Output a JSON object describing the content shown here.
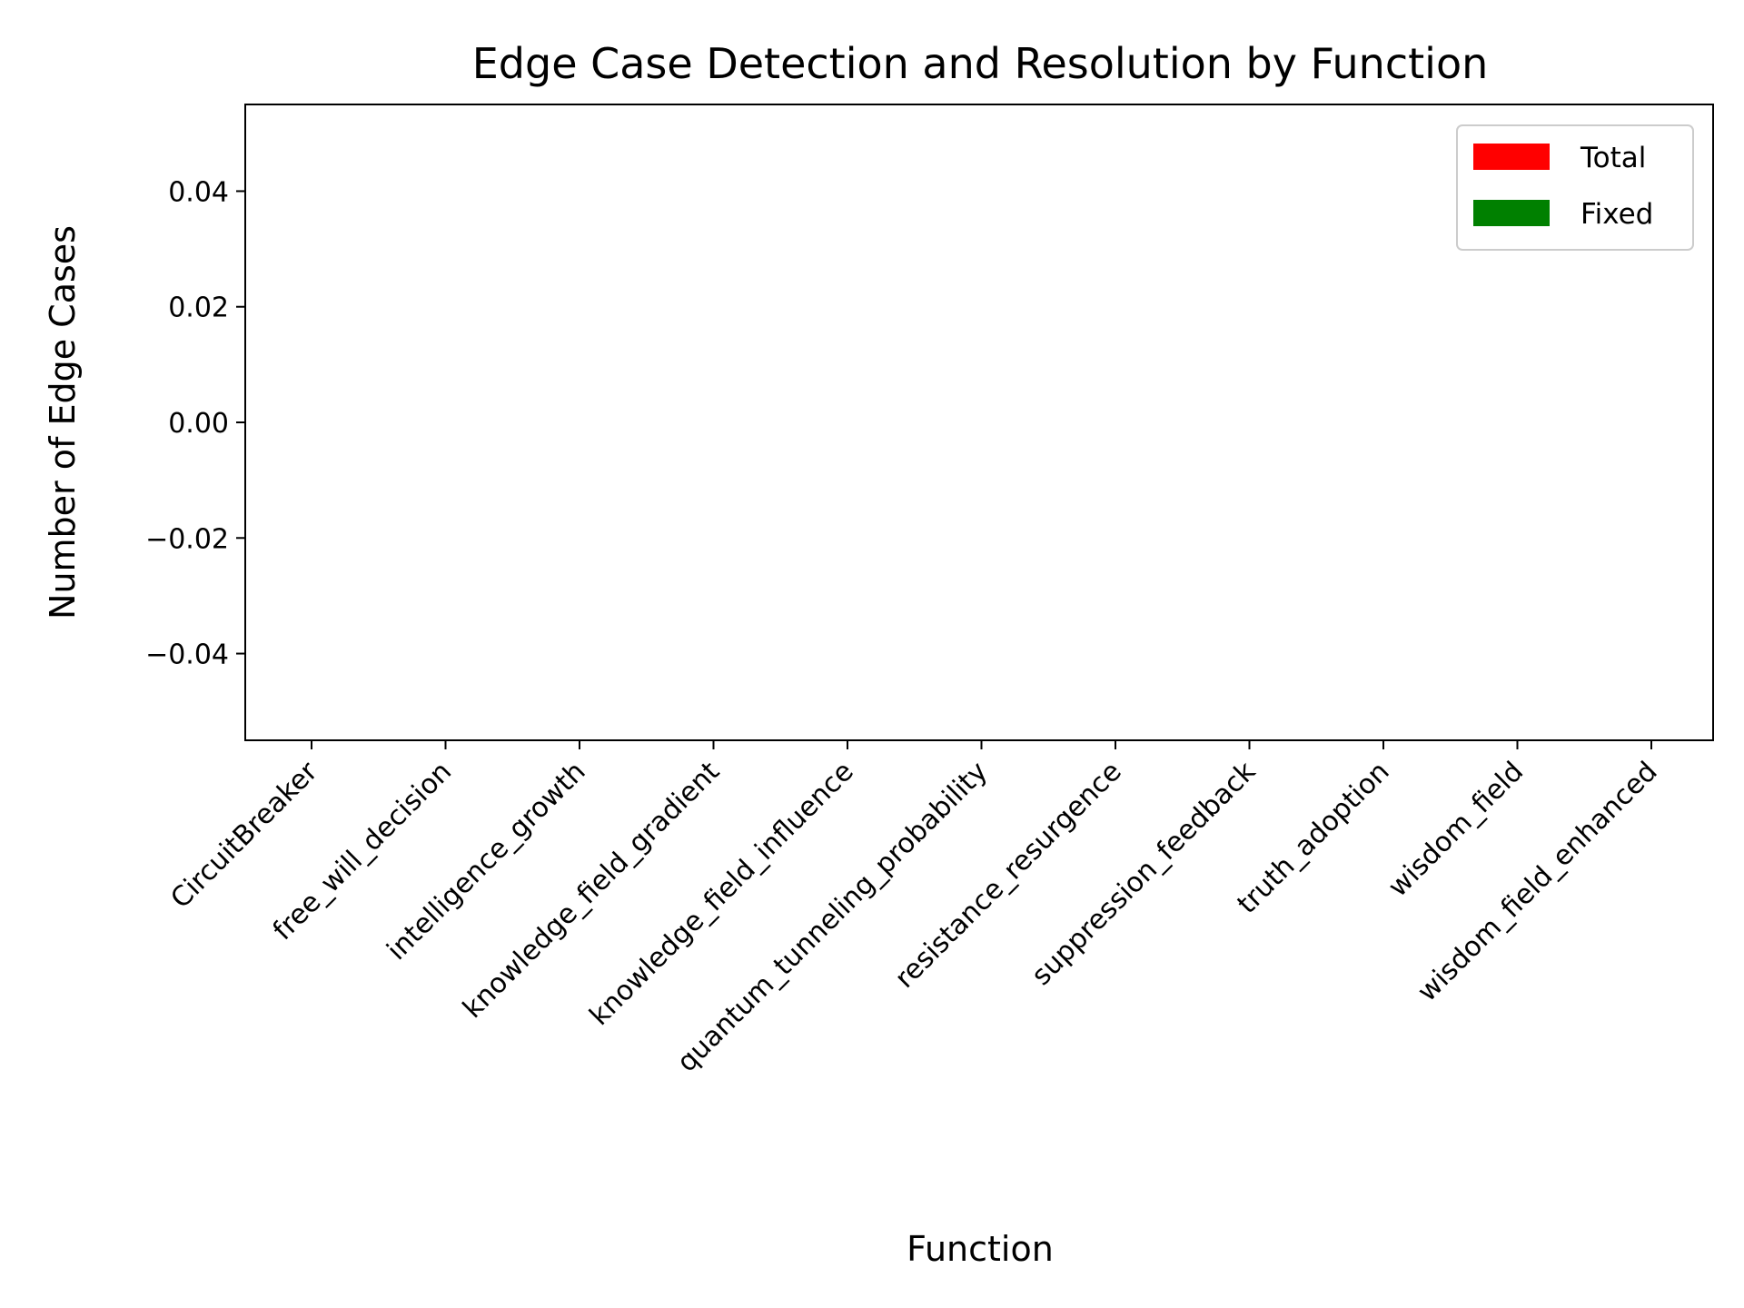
{
  "chart_data": {
    "type": "bar",
    "title": "Edge Case Detection and Resolution by Function",
    "xlabel": "Function",
    "ylabel": "Number of Edge Cases",
    "categories": [
      "CircuitBreaker",
      "free_will_decision",
      "intelligence_growth",
      "knowledge_field_gradient",
      "knowledge_field_influence",
      "quantum_tunneling_probability",
      "resistance_resurgence",
      "suppression_feedback",
      "truth_adoption",
      "wisdom_field",
      "wisdom_field_enhanced"
    ],
    "series": [
      {
        "name": "Total",
        "color": "#ff0000",
        "values": [
          null,
          null,
          null,
          null,
          null,
          null,
          null,
          null,
          null,
          null,
          null
        ]
      },
      {
        "name": "Fixed",
        "color": "#008000",
        "values": [
          null,
          null,
          null,
          null,
          null,
          null,
          null,
          null,
          null,
          null,
          null
        ]
      }
    ],
    "ylim": [
      -0.055,
      0.055
    ],
    "yticks": [
      0.04,
      0.02,
      0.0,
      -0.02,
      -0.04
    ],
    "ytick_labels": [
      "0.04",
      "0.02",
      "0.00",
      "−0.02",
      "−0.04"
    ],
    "grid": false,
    "legend_position": "top-right"
  }
}
